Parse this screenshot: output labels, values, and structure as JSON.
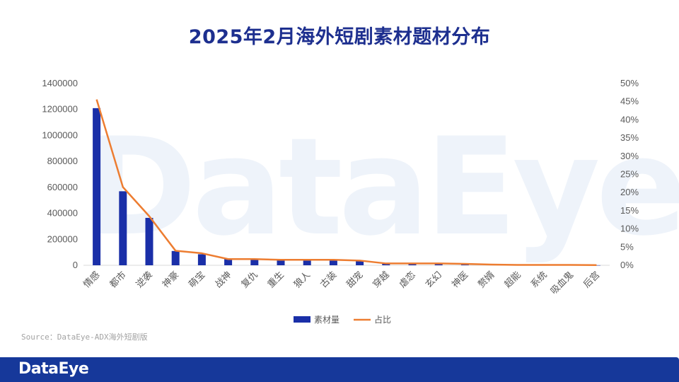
{
  "page": {
    "title": "2025年2月海外短剧素材题材分布",
    "source": "Source：DataEye-ADX海外短剧版",
    "footer_logo": "DataEye",
    "watermark": "DataEye"
  },
  "colors": {
    "bar": "#1a2fa8",
    "line": "#ed7d31",
    "title": "#1d2f8f",
    "footer": "#16389a",
    "axis_text": "#595959"
  },
  "chart_data": {
    "type": "bar",
    "categories": [
      "情感",
      "都市",
      "逆袭",
      "神豪",
      "萌宝",
      "战神",
      "复仇",
      "重生",
      "狼人",
      "古装",
      "甜宠",
      "穿越",
      "虐恋",
      "玄幻",
      "神医",
      "赘婿",
      "超能",
      "系统",
      "吸血鬼",
      "后宫"
    ],
    "series": [
      {
        "name": "素材量",
        "type": "bar",
        "axis": "left",
        "values": [
          1210000,
          570000,
          365000,
          110000,
          85000,
          48000,
          45000,
          40000,
          38000,
          37000,
          32000,
          12000,
          11000,
          10000,
          7000,
          4000,
          2000,
          1500,
          1000,
          500
        ]
      },
      {
        "name": "占比",
        "type": "line",
        "axis": "right",
        "values": [
          0.456,
          0.215,
          0.135,
          0.04,
          0.033,
          0.017,
          0.017,
          0.015,
          0.015,
          0.015,
          0.013,
          0.005,
          0.005,
          0.005,
          0.004,
          0.002,
          0.001,
          0.001,
          0.001,
          0.0005
        ]
      }
    ],
    "y_left": {
      "min": 0,
      "max": 1400000,
      "ticks": [
        "0",
        "200000",
        "400000",
        "600000",
        "800000",
        "1000000",
        "1200000",
        "1400000"
      ]
    },
    "y_right": {
      "min": 0,
      "max": 0.5,
      "ticks": [
        "0%",
        "5%",
        "10%",
        "15%",
        "20%",
        "25%",
        "30%",
        "35%",
        "40%",
        "45%",
        "50%"
      ]
    },
    "grid": false,
    "legend_position": "bottom"
  }
}
